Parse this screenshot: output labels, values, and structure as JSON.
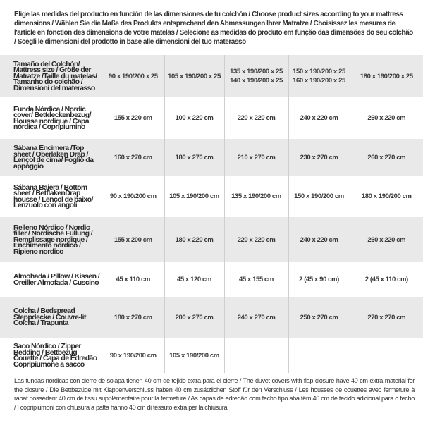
{
  "intro": "Elige las medidas del producto en función de las dimensiones de tu colchón / Choose product sizes according to your mattress dimensions / Wählen Sie die Maße des Produkts entsprechend den Abmessungen Ihrer Matratze / Choisissez les mesures de l'article en fonction des dimensions de votre matelas / Selecione as medidas do produto em função das dimensões do seu colchão / Scegli le dimensioni del prodotto in base alle dimensioni del tuo materasso",
  "table": {
    "header": {
      "label": "Tamaño del Colchón/ Mattress size / Größe der Matratze /Taille du matelas/ Tamanho do colchão / Dimensioni del materasso",
      "cols": [
        [
          "90 x 190/200 x 25"
        ],
        [
          "105 x 190/200 x 25"
        ],
        [
          "135 x 190/200 x 25",
          "140 x 190/200 x 25"
        ],
        [
          "150 x 190/200 x 25",
          "160 x 190/200 x 25"
        ],
        [
          "180 x 190/200 x 25"
        ]
      ]
    },
    "rows": [
      {
        "label": "Funda Nórdica /  Nordic cover/ Bettdeckenbezug/ Housse nordique  / Capa nórdica / Copripiumino",
        "values": [
          "155 x 220 cm",
          "100 x 220 cm",
          "220 x 220 cm",
          "240 x 220 cm",
          "260 x 220 cm"
        ]
      },
      {
        "label": "Sábana Encimera /Top sheet / Oberlaken Drap / Lençol de cima/ Foglio da appoggio",
        "values": [
          "160 x 270 cm",
          "180 x 270 cm",
          "210 x 270 cm",
          "230 x 270 cm",
          "260 x 270 cm"
        ]
      },
      {
        "label": "Sábana Bajera / Bottom sheet / BettlakenDrap housse / Lençol de baixo/ Lenzuolo con angoli",
        "values": [
          "90 x 190/200 cm",
          "105 x 190/200 cm",
          "135 x 190/200 cm",
          "150 x 190/200 cm",
          "180 x 190/200 cm"
        ]
      },
      {
        "label": "Relleno Nórdico / Nordic filler / Nordische Füllung / Remplissage nordique / Enchimento nórdico / Ripieno nordico",
        "values": [
          "155 x 200 cm",
          "180 x 220 cm",
          "220 x 220 cm",
          "240 x 220 cm",
          "260 x 220 cm"
        ]
      },
      {
        "label": "Almohada  / Pillow / Kissen / Oreiller Almofada / Cuscino",
        "values": [
          "45 x 110 cm",
          "45 x 120 cm",
          "45 x 155 cm",
          "2 (45 x 90 cm)",
          "2 (45 x 110 cm)"
        ]
      },
      {
        "label": "Colcha / Bedspread Steppdecke / Couvre-lit Colcha / Trapunta",
        "values": [
          "180 x 270 cm",
          "200 x 270 cm",
          "240 x 270 cm",
          "250 x 270 cm",
          "270 x 270 cm"
        ]
      },
      {
        "label": "Saco Nórdico / Zipper Bedding / Bettbezug Couette  / Capa de Edredão Copripiumone a sacco",
        "values": [
          "90 x 190/200 cm",
          "105 x 190/200 cm",
          "",
          "",
          ""
        ]
      }
    ]
  },
  "footnote": "Las fundas nórdicas con cierre de solapa tienen 40 cm de tejido extra para el cierre  / The duvet covers with flap closure have 40 cm extra material for the closure / Die Bettbezüge mit Klappenverschluss haben 40 cm zusätzlichen Stoff für den Verschluss / Les housses de couettes avec fermeture à rabat possèdent 40 cm de tissu supplémentaire pour la fermeture / As capas de edredão com fecho tipo aba têm 40 cm de tecido adicional para o fecho / I copripiumoni con chiusura a patta hanno 40 cm di tessuto extra per la chiusura"
}
